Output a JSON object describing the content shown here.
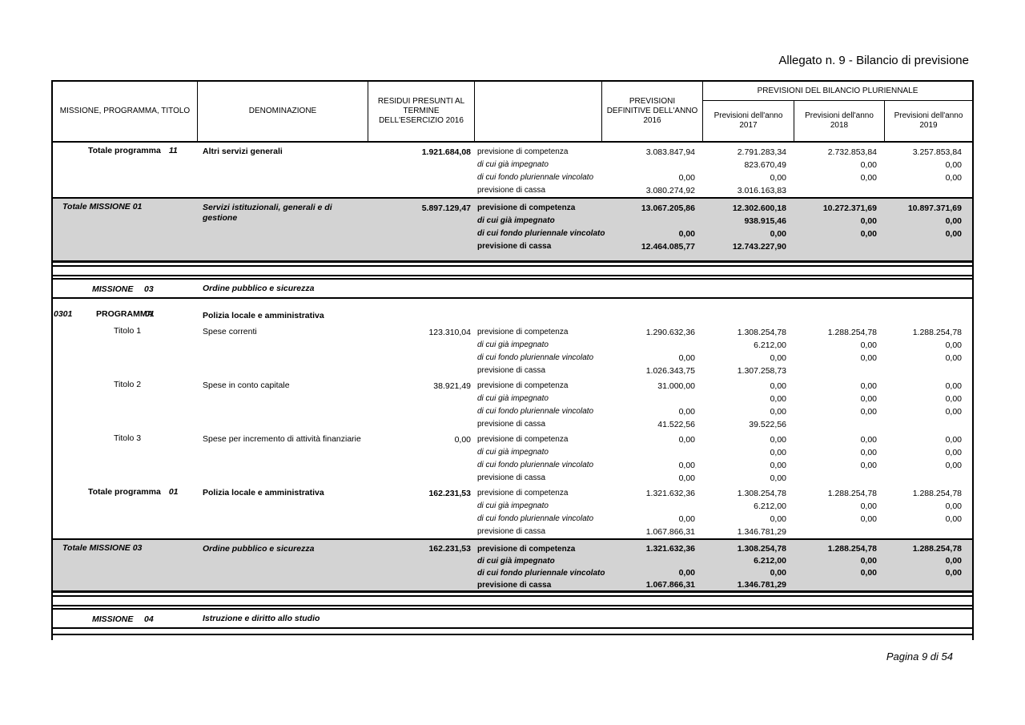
{
  "title": "Allegato n. 9 - Bilancio di previsione",
  "footer": {
    "page_label": "Pagina 9 di 54"
  },
  "colors": {
    "total_row_bg": "#d3d3d3",
    "border": "#000000",
    "page_bg": "#ffffff"
  },
  "table": {
    "header": {
      "col_missione": "MISSIONE, PROGRAMMA, TITOLO",
      "col_denominazione": "DENOMINAZIONE",
      "col_residui": "RESIDUI PRESUNTI AL TERMINE DELL'ESERCIZIO 2016",
      "col_previsioni_definitive": "PREVISIONI DEFINITIVE DELL'ANNO 2016",
      "col_pluriennale": "PREVISIONI DEL BILANCIO PLURIENNALE",
      "col_2017": "Previsioni dell'anno 2017",
      "col_2018": "Previsioni dell'anno 2018",
      "col_2019": "Previsioni dell'anno 2019"
    },
    "line_labels": [
      "previsione di competenza",
      "di cui già impegnato",
      "di cui fondo pluriennale vincolato",
      "previsione di cassa"
    ],
    "body": [
      {
        "type": "program-total",
        "label": "Totale programma",
        "code": "11",
        "denom": "Altri servizi generali",
        "residui": "1.921.684,08",
        "values": [
          [
            "3.083.847,94",
            "2.791.283,34",
            "2.732.853,84",
            "3.257.853,84"
          ],
          [
            "",
            "823.670,49",
            "0,00",
            "0,00"
          ],
          [
            "0,00",
            "0,00",
            "0,00",
            "0,00"
          ],
          [
            "3.080.274,92",
            "3.016.163,83",
            "",
            ""
          ]
        ]
      },
      {
        "type": "mission-total",
        "label": "Totale MISSIONE 01",
        "denom": "Servizi istituzionali, generali e di gestione",
        "residui": "5.897.129,47",
        "values": [
          [
            "13.067.205,86",
            "12.302.600,18",
            "10.272.371,69",
            "10.897.371,69"
          ],
          [
            "",
            "938.915,46",
            "0,00",
            "0,00"
          ],
          [
            "0,00",
            "0,00",
            "0,00",
            "0,00"
          ],
          [
            "12.464.085,77",
            "12.743.227,90",
            "",
            ""
          ]
        ]
      },
      {
        "type": "separator"
      },
      {
        "type": "mission-header",
        "label": "MISSIONE",
        "code": "03",
        "denom": "Ordine pubblico e sicurezza"
      },
      {
        "type": "program-header",
        "margin_code": "0301",
        "label": "PROGRAMMA",
        "code": "01",
        "denom": "Polizia locale e amministrativa"
      },
      {
        "type": "detail",
        "label": "Titolo 1",
        "denom": "Spese correnti",
        "residui": "123.310,04",
        "values": [
          [
            "1.290.632,36",
            "1.308.254,78",
            "1.288.254,78",
            "1.288.254,78"
          ],
          [
            "",
            "6.212,00",
            "0,00",
            "0,00"
          ],
          [
            "0,00",
            "0,00",
            "0,00",
            "0,00"
          ],
          [
            "1.026.343,75",
            "1.307.258,73",
            "",
            ""
          ]
        ]
      },
      {
        "type": "detail",
        "label": "Titolo 2",
        "denom": "Spese in conto capitale",
        "residui": "38.921,49",
        "values": [
          [
            "31.000,00",
            "0,00",
            "0,00",
            "0,00"
          ],
          [
            "",
            "0,00",
            "0,00",
            "0,00"
          ],
          [
            "0,00",
            "0,00",
            "0,00",
            "0,00"
          ],
          [
            "41.522,56",
            "39.522,56",
            "",
            ""
          ]
        ]
      },
      {
        "type": "detail",
        "label": "Titolo 3",
        "denom": "Spese per incremento di attività finanziarie",
        "residui": "0,00",
        "values": [
          [
            "0,00",
            "0,00",
            "0,00",
            "0,00"
          ],
          [
            "",
            "0,00",
            "0,00",
            "0,00"
          ],
          [
            "0,00",
            "0,00",
            "0,00",
            "0,00"
          ],
          [
            "0,00",
            "0,00",
            "",
            ""
          ]
        ]
      },
      {
        "type": "program-total",
        "label": "Totale programma",
        "code": "01",
        "denom": "Polizia locale e amministrativa",
        "residui": "162.231,53",
        "values": [
          [
            "1.321.632,36",
            "1.308.254,78",
            "1.288.254,78",
            "1.288.254,78"
          ],
          [
            "",
            "6.212,00",
            "0,00",
            "0,00"
          ],
          [
            "0,00",
            "0,00",
            "0,00",
            "0,00"
          ],
          [
            "1.067.866,31",
            "1.346.781,29",
            "",
            ""
          ]
        ]
      },
      {
        "type": "mission-total",
        "compact": true,
        "label": "Totale MISSIONE 03",
        "denom": "Ordine pubblico e sicurezza",
        "residui": "162.231,53",
        "values": [
          [
            "1.321.632,36",
            "1.308.254,78",
            "1.288.254,78",
            "1.288.254,78"
          ],
          [
            "",
            "6.212,00",
            "0,00",
            "0,00"
          ],
          [
            "0,00",
            "0,00",
            "0,00",
            "0,00"
          ],
          [
            "1.067.866,31",
            "1.346.781,29",
            "",
            ""
          ]
        ]
      },
      {
        "type": "separator"
      },
      {
        "type": "mission-header",
        "label": "MISSIONE",
        "code": "04",
        "denom": "Istruzione e diritto allo studio"
      },
      {
        "type": "open-band"
      }
    ]
  }
}
